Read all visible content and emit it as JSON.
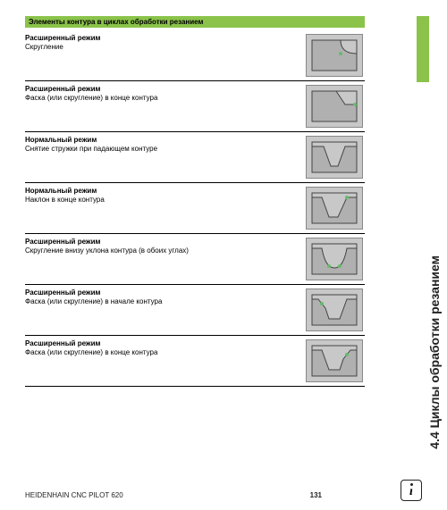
{
  "colors": {
    "green": "#8bc34a",
    "icon_bg": "#c8c8c8",
    "icon_border": "#888888",
    "shape_fill": "#b0b0b0",
    "shape_stroke": "#444444"
  },
  "header": "Элементы контура в циклах обработки резанием",
  "side_title": "4.4 Циклы обработки резанием",
  "rows": [
    {
      "mode": "Расширенный режим",
      "desc": "Скругление",
      "shape": "round1"
    },
    {
      "mode": "Расширенный режим",
      "desc": "Фаска (или скругление) в конце контура",
      "shape": "chamfer_end"
    },
    {
      "mode": "Нормальный режим",
      "desc": "Снятие стружки при падающем контуре",
      "shape": "v_normal"
    },
    {
      "mode": "Нормальный режим",
      "desc": "Наклон в конце контура",
      "shape": "v_slope"
    },
    {
      "mode": "Расширенный режим",
      "desc": "Скругление внизу уклона контура (в обоих углах)",
      "shape": "v_round"
    },
    {
      "mode": "Расширенный режим",
      "desc": "Фаска (или скругление) в начале контура",
      "shape": "v_chamfer_start"
    },
    {
      "mode": "Расширенный режим",
      "desc": "Фаска (или скругление) в конце контура",
      "shape": "v_chamfer_end"
    }
  ],
  "footer": {
    "left": "HEIDENHAIN CNC PILOT 620",
    "page": "131"
  }
}
